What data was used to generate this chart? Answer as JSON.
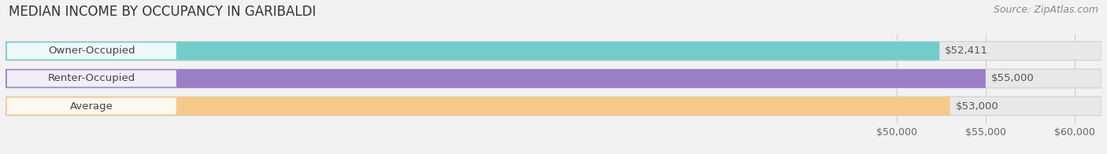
{
  "title": "MEDIAN INCOME BY OCCUPANCY IN GARIBALDI",
  "source": "Source: ZipAtlas.com",
  "categories": [
    "Owner-Occupied",
    "Renter-Occupied",
    "Average"
  ],
  "values": [
    52411,
    55000,
    53000
  ],
  "bar_colors": [
    "#72cdc8",
    "#9b7ec8",
    "#f5c98a"
  ],
  "value_labels": [
    "$52,411",
    "$55,000",
    "$53,000"
  ],
  "xmin": 0,
  "xlim_display_min": 48000,
  "xlim": [
    0,
    61500
  ],
  "xticks": [
    50000,
    55000,
    60000
  ],
  "xtick_labels": [
    "$50,000",
    "$55,000",
    "$60,000"
  ],
  "background_color": "#f2f2f2",
  "bar_bg_color": "#e2e2e2",
  "title_fontsize": 12,
  "source_fontsize": 9,
  "label_fontsize": 9.5,
  "tick_fontsize": 9
}
